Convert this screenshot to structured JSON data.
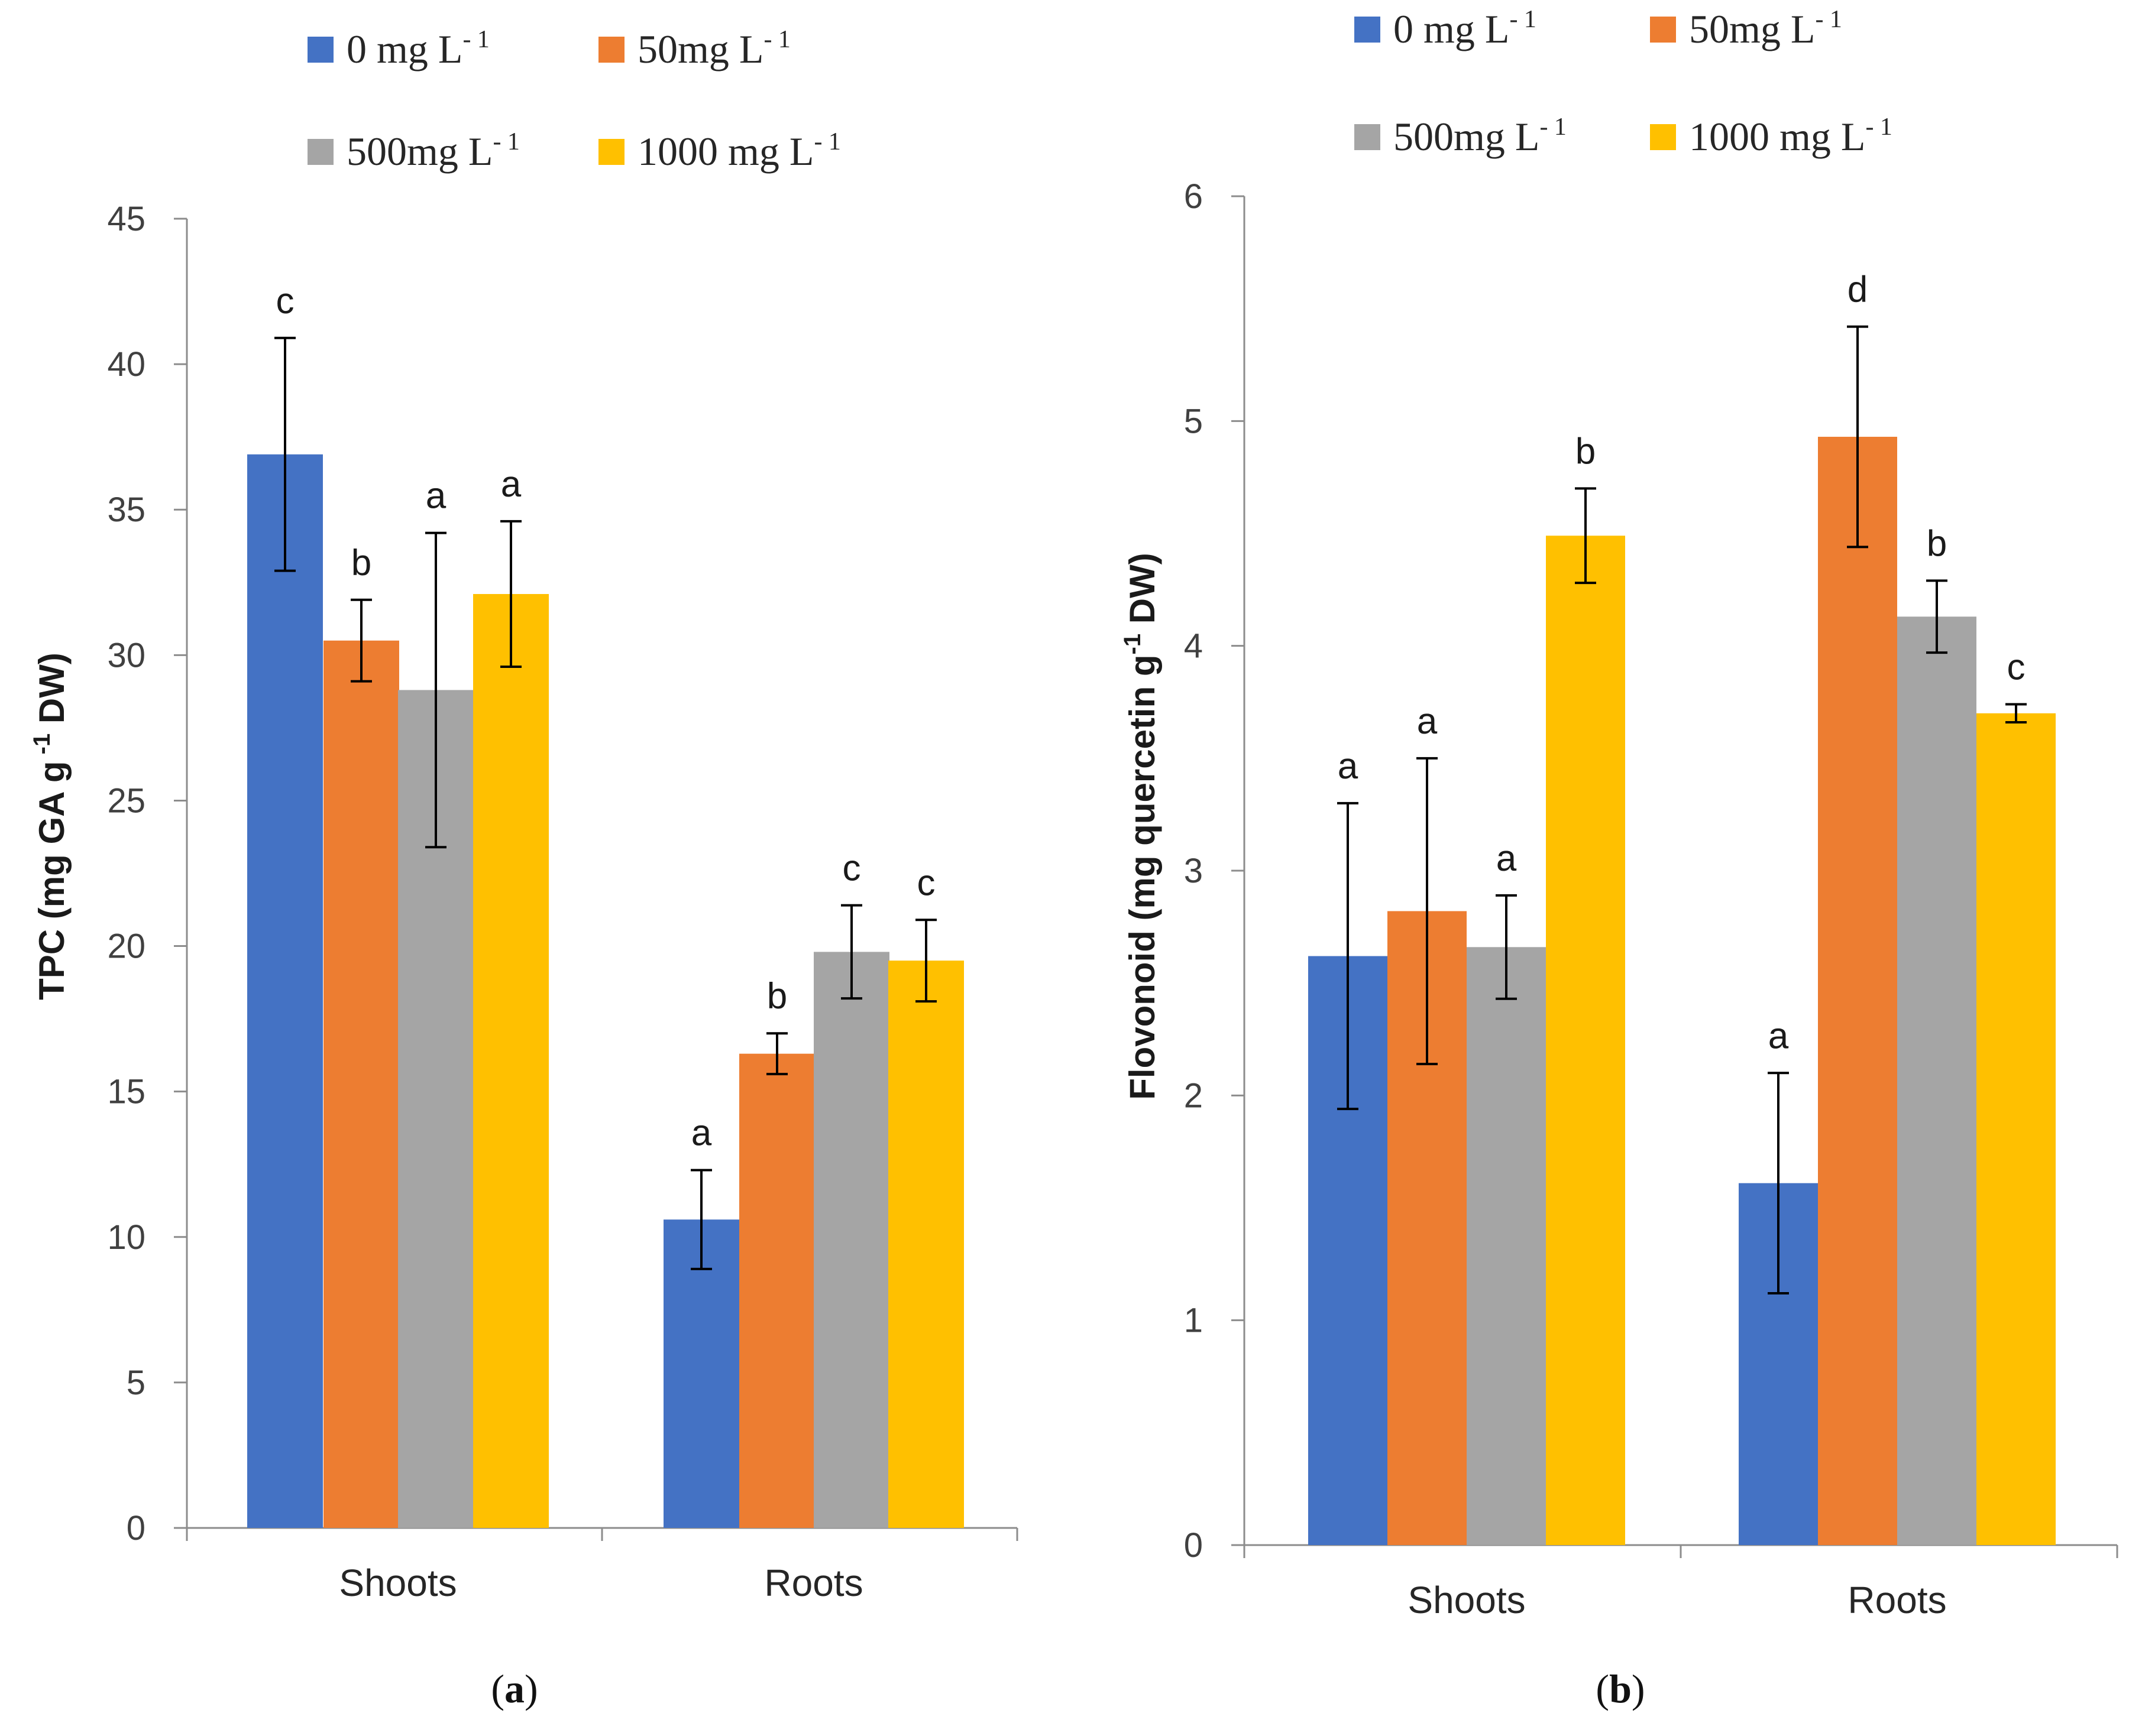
{
  "chart_data": [
    {
      "type": "bar",
      "panel_label": "a",
      "ylabel": "TPC (mg GA g -1 DW)",
      "ylim": [
        0,
        45
      ],
      "yticks": [
        0,
        5,
        10,
        15,
        20,
        25,
        30,
        35,
        40,
        45
      ],
      "categories": [
        "Shoots",
        "Roots"
      ],
      "legend": [
        "0 mg L-1",
        "50 mg L-1",
        "500 mg L-1",
        "1000 mg L-1"
      ],
      "series": [
        {
          "name": "0 mg L-1",
          "color": "#4472C4",
          "values": [
            36.9,
            10.6
          ],
          "errors": [
            4.0,
            1.7
          ],
          "letters": [
            "c",
            "a"
          ]
        },
        {
          "name": "50 mg L-1",
          "color": "#ED7D31",
          "values": [
            30.5,
            16.3
          ],
          "errors": [
            1.4,
            0.7
          ],
          "letters": [
            "b",
            "b"
          ]
        },
        {
          "name": "500 mg L-1",
          "color": "#A5A5A5",
          "values": [
            28.8,
            19.8
          ],
          "errors": [
            5.4,
            1.6
          ],
          "letters": [
            "a",
            "c"
          ]
        },
        {
          "name": "1000 mg L-1",
          "color": "#FFC000",
          "values": [
            32.1,
            19.5
          ],
          "errors": [
            2.5,
            1.4
          ],
          "letters": [
            "a",
            "c"
          ]
        }
      ]
    },
    {
      "type": "bar",
      "panel_label": "b",
      "ylabel": "Flovonoid (mg quercetin g-1 DW)",
      "ylim": [
        0,
        6
      ],
      "yticks": [
        0,
        1,
        2,
        3,
        4,
        5,
        6
      ],
      "categories": [
        "Shoots",
        "Roots"
      ],
      "legend": [
        "0 mg L-1",
        "50mg L-1",
        "500mg L-1",
        "1000 mg L-1"
      ],
      "series": [
        {
          "name": "0 mg L-1",
          "color": "#4472C4",
          "values": [
            2.62,
            1.61
          ],
          "errors": [
            0.68,
            0.49
          ],
          "letters": [
            "a",
            "a"
          ]
        },
        {
          "name": "50mg L-1",
          "color": "#ED7D31",
          "values": [
            2.82,
            4.93
          ],
          "errors": [
            0.68,
            0.49
          ],
          "letters": [
            "a",
            "d"
          ]
        },
        {
          "name": "500mg L-1",
          "color": "#A5A5A5",
          "values": [
            2.66,
            4.13
          ],
          "errors": [
            0.23,
            0.16
          ],
          "letters": [
            "a",
            "b"
          ]
        },
        {
          "name": "1000 mg L-1",
          "color": "#FFC000",
          "values": [
            4.49,
            3.7
          ],
          "errors": [
            0.21,
            0.04
          ],
          "letters": [
            "b",
            "c"
          ]
        }
      ]
    }
  ],
  "legend_a": {
    "items": [
      {
        "label": "0 mg L",
        "sup": "- 1"
      },
      {
        "label": "50mg L",
        "sup": "- 1"
      },
      {
        "label": "500mg L",
        "sup": "- 1"
      },
      {
        "label": "1000 mg L",
        "sup": "- 1"
      }
    ]
  },
  "legend_b": {
    "items": [
      {
        "label": "0 mg L",
        "sup": "- 1"
      },
      {
        "label": "50mg L",
        "sup": "- 1"
      },
      {
        "label": "500mg L",
        "sup": "- 1"
      },
      {
        "label": "1000 mg L",
        "sup": "- 1"
      }
    ]
  },
  "ylabel_a": {
    "pre": "TPC (mg GA g",
    "sup": " -1",
    "post": " DW)"
  },
  "ylabel_b": {
    "pre": "Flovonoid (mg quercetin g",
    "sup": "-1",
    "post": " DW)"
  },
  "panel_labels": {
    "a": {
      "open": "(",
      "letter": "a",
      "close": ")"
    },
    "b": {
      "open": "(",
      "letter": "b",
      "close": ")"
    }
  }
}
